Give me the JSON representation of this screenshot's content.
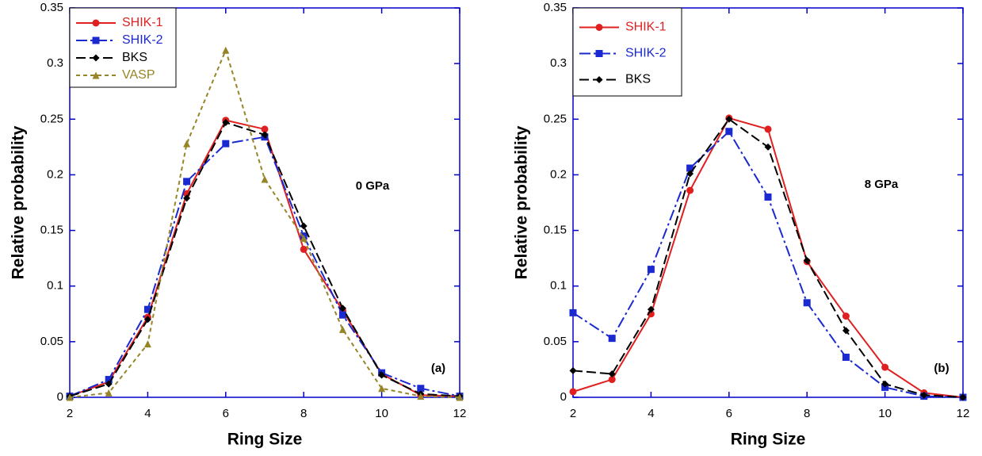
{
  "chart_data": [
    {
      "type": "line",
      "xlabel": "Ring Size",
      "ylabel": "Relative probability",
      "annotations": [
        "0 GPa",
        "(a)"
      ],
      "x": [
        2,
        3,
        4,
        5,
        6,
        7,
        8,
        9,
        10,
        11,
        12
      ],
      "xlim": [
        2,
        12
      ],
      "xticks": [
        2,
        4,
        6,
        8,
        10,
        12
      ],
      "ylim": [
        0,
        0.35
      ],
      "yticks": [
        0,
        0.05,
        0.1,
        0.15,
        0.2,
        0.25,
        0.3,
        0.35
      ],
      "legend": "upper left",
      "series": [
        {
          "name": "SHIK-1",
          "color": "#e02020",
          "marker": "circle",
          "linestyle": "solid",
          "values": [
            0.001,
            0.014,
            0.072,
            0.183,
            0.249,
            0.241,
            0.133,
            0.078,
            0.021,
            0.002,
            0.001
          ]
        },
        {
          "name": "SHIK-2",
          "color": "#1a2ad0",
          "marker": "square",
          "linestyle": "dashdot",
          "values": [
            0.001,
            0.016,
            0.079,
            0.194,
            0.228,
            0.234,
            0.145,
            0.074,
            0.022,
            0.008,
            0.001
          ]
        },
        {
          "name": "BKS",
          "color": "#000000",
          "marker": "diamond",
          "linestyle": "dashed",
          "values": [
            0.001,
            0.012,
            0.07,
            0.179,
            0.247,
            0.236,
            0.154,
            0.08,
            0.02,
            0.003,
            0.001
          ]
        },
        {
          "name": "VASP",
          "color": "#968526",
          "marker": "triangle",
          "linestyle": "dotted",
          "values": [
            0,
            0.004,
            0.048,
            0.228,
            0.312,
            0.196,
            0.143,
            0.061,
            0.008,
            0.001,
            0
          ]
        }
      ]
    },
    {
      "type": "line",
      "xlabel": "Ring Size",
      "ylabel": "Relative probability",
      "annotations": [
        "8 GPa",
        "(b)"
      ],
      "x": [
        2,
        3,
        4,
        5,
        6,
        7,
        8,
        9,
        10,
        11,
        12
      ],
      "xlim": [
        2,
        12
      ],
      "xticks": [
        2,
        4,
        6,
        8,
        10,
        12
      ],
      "ylim": [
        0,
        0.35
      ],
      "yticks": [
        0,
        0.05,
        0.1,
        0.15,
        0.2,
        0.25,
        0.3,
        0.35
      ],
      "legend": "upper left",
      "series": [
        {
          "name": "SHIK-1",
          "color": "#e02020",
          "marker": "circle",
          "linestyle": "solid",
          "values": [
            0.005,
            0.016,
            0.075,
            0.186,
            0.251,
            0.241,
            0.122,
            0.073,
            0.027,
            0.004,
            0
          ]
        },
        {
          "name": "SHIK-2",
          "color": "#1a2ad0",
          "marker": "square",
          "linestyle": "dashdot",
          "values": [
            0.076,
            0.053,
            0.115,
            0.206,
            0.239,
            0.18,
            0.085,
            0.036,
            0.009,
            0.001,
            0
          ]
        },
        {
          "name": "BKS",
          "color": "#000000",
          "marker": "diamond",
          "linestyle": "dashed",
          "values": [
            0.024,
            0.021,
            0.079,
            0.201,
            0.25,
            0.225,
            0.123,
            0.06,
            0.012,
            0.002,
            0
          ]
        }
      ]
    }
  ]
}
